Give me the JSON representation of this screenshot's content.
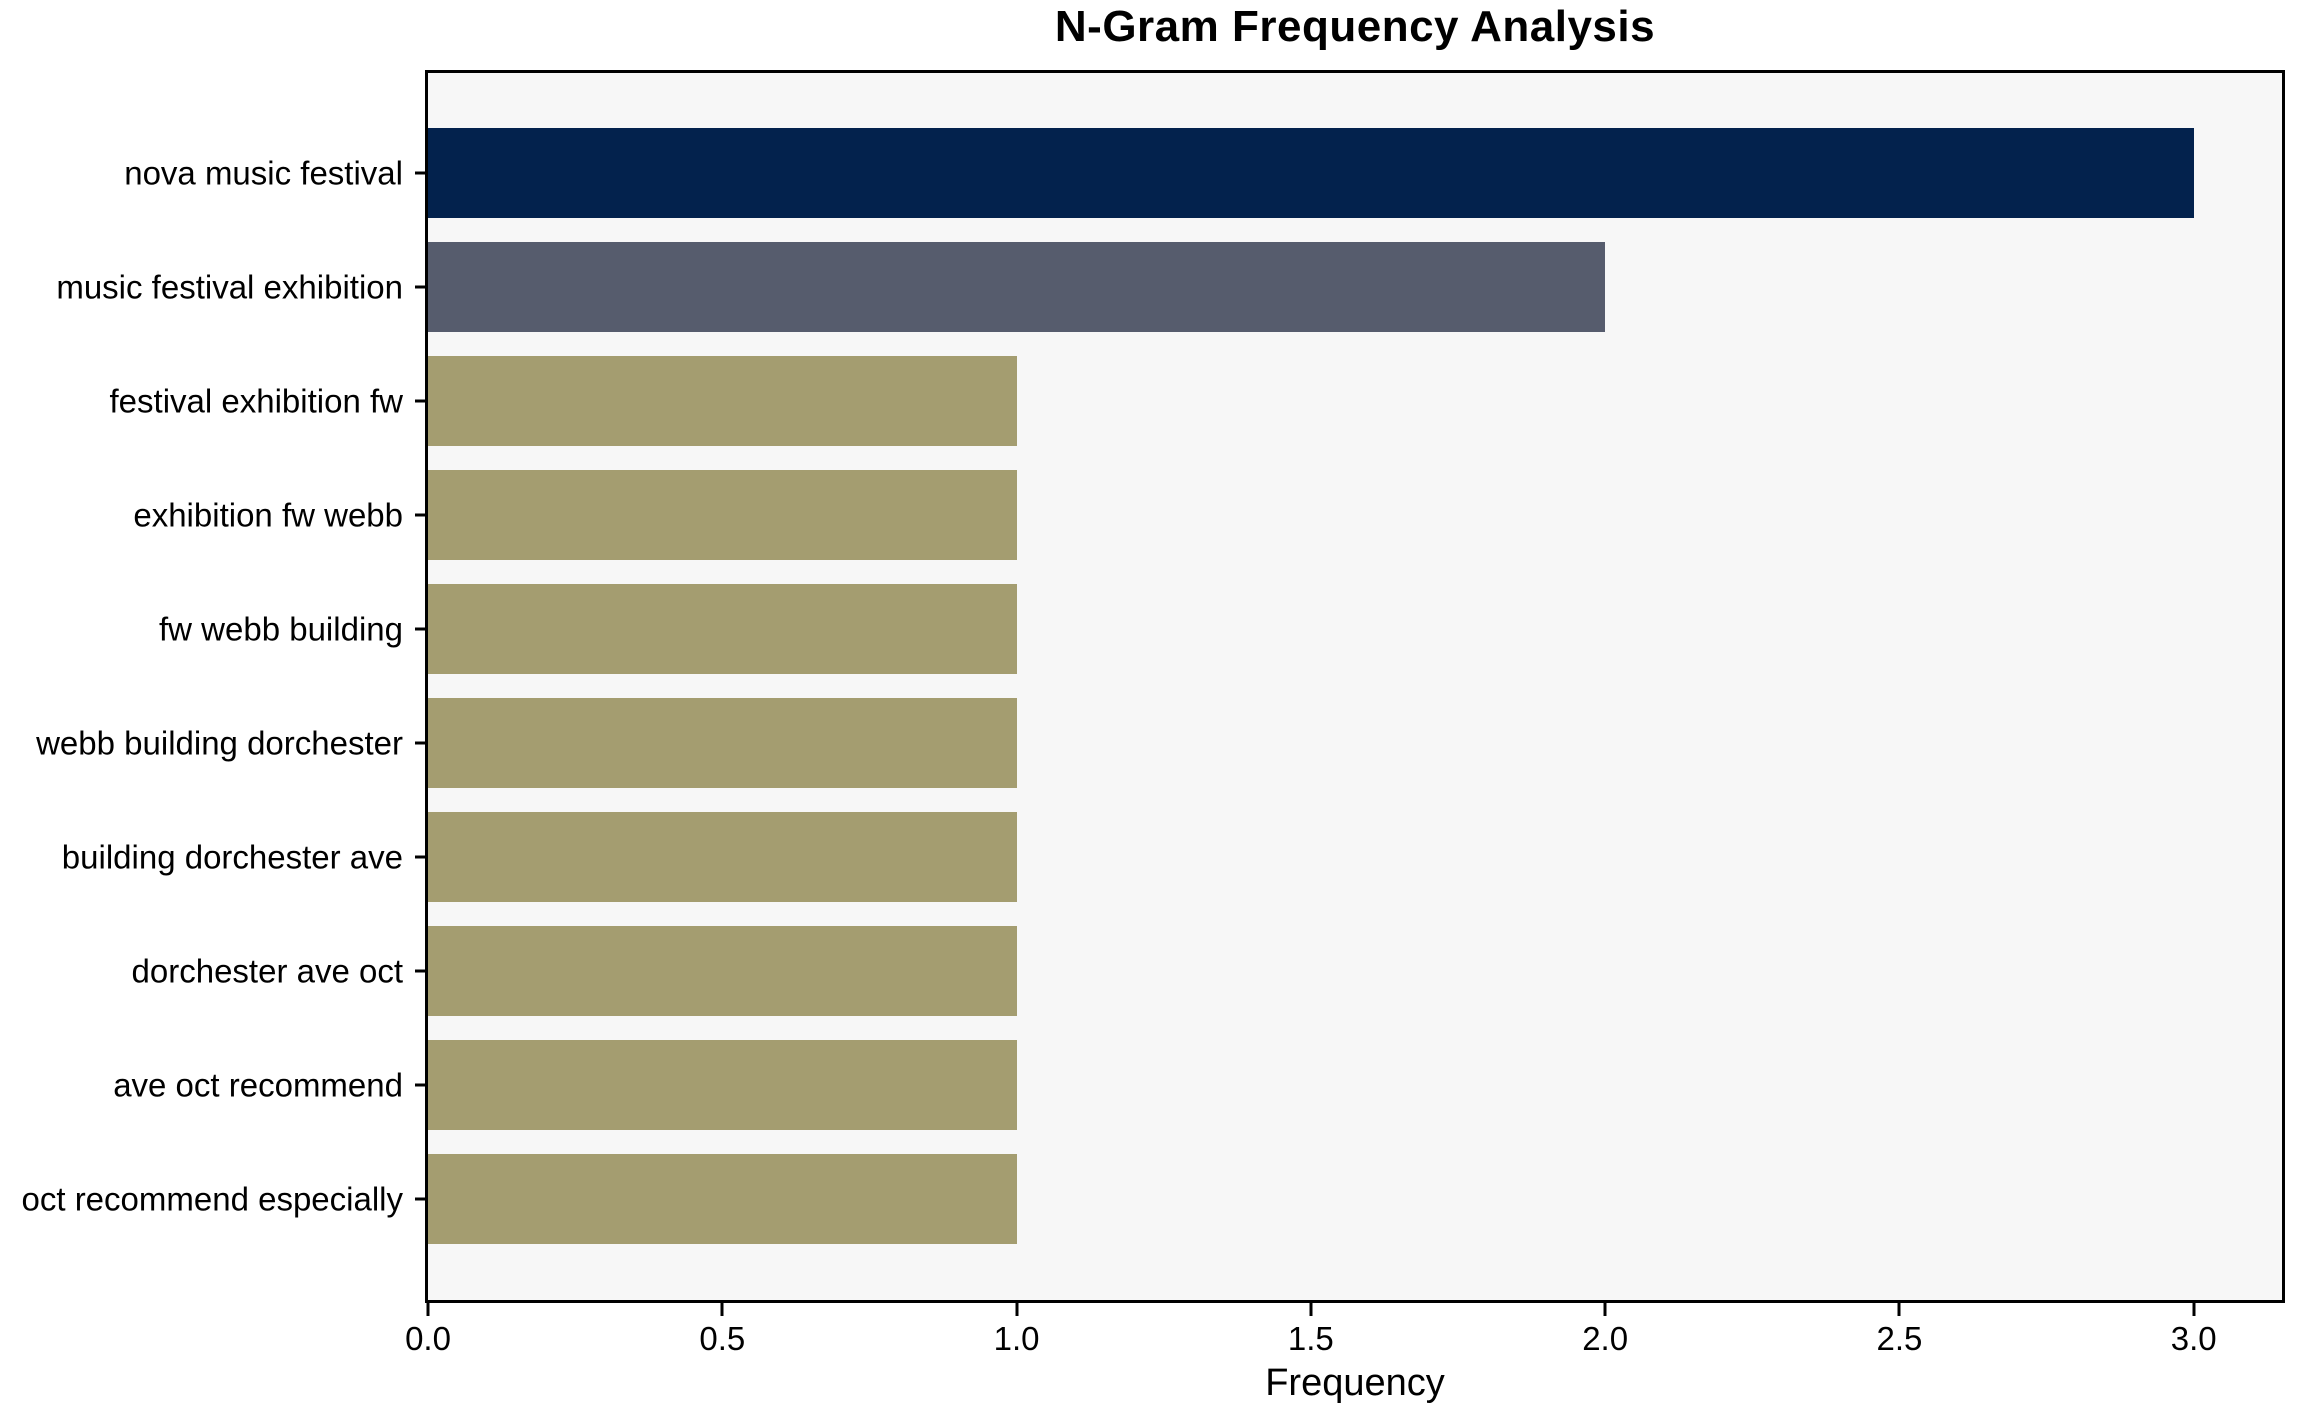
{
  "chart_data": {
    "type": "bar",
    "orientation": "horizontal",
    "title": "N-Gram Frequency Analysis",
    "xlabel": "Frequency",
    "ylabel": "",
    "categories": [
      "nova music festival",
      "music festival exhibition",
      "festival exhibition fw",
      "exhibition fw webb",
      "fw webb building",
      "webb building dorchester",
      "building dorchester ave",
      "dorchester ave oct",
      "ave oct recommend",
      "oct recommend especially"
    ],
    "values": [
      3,
      2,
      1,
      1,
      1,
      1,
      1,
      1,
      1,
      1
    ],
    "bar_colors": [
      "#03224d",
      "#565c6d",
      "#a49d70",
      "#a49d70",
      "#a49d70",
      "#a49d70",
      "#a49d70",
      "#a49d70",
      "#a49d70",
      "#a49d70"
    ],
    "xlim": [
      0,
      3.15
    ],
    "xticks": [
      0.0,
      0.5,
      1.0,
      1.5,
      2.0,
      2.5,
      3.0
    ],
    "xtick_labels": [
      "0.0",
      "0.5",
      "1.0",
      "1.5",
      "2.0",
      "2.5",
      "3.0"
    ],
    "grid": false,
    "legend": false,
    "plot_background": "#f7f7f7",
    "figure_background": "#ffffff",
    "spine_color": "#000000",
    "text_color": "#000000"
  }
}
